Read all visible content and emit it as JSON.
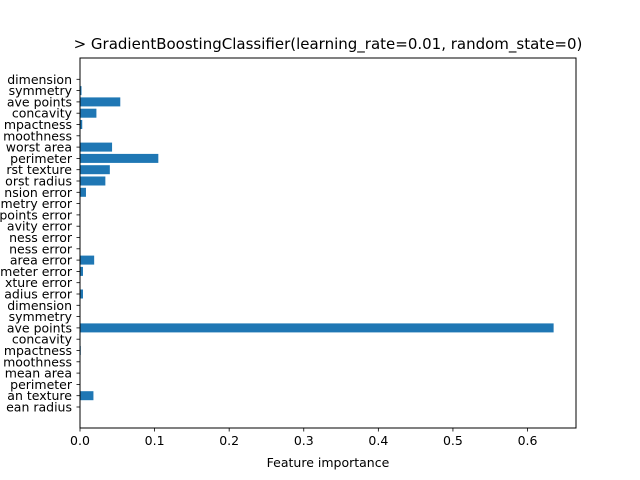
{
  "chart_data": {
    "type": "bar",
    "orientation": "horizontal",
    "title": "> GradientBoostingClassifier(learning_rate=0.01, random_state=0)",
    "xlabel": "Feature importance",
    "ylabel": "",
    "xlim": [
      0,
      0.665
    ],
    "xticks": [
      "0.0",
      "0.1",
      "0.2",
      "0.3",
      "0.4",
      "0.5",
      "0.6"
    ],
    "grid": false,
    "bar_color": "#1f77b4",
    "categories": [
      "mean radius",
      "mean texture",
      "mean perimeter",
      "mean area",
      "mean smoothness",
      "mean compactness",
      "mean concavity",
      "mean concave points",
      "mean symmetry",
      "mean fractal dimension",
      "radius error",
      "texture error",
      "perimeter error",
      "area error",
      "smoothness error",
      "compactness error",
      "concavity error",
      "concave points error",
      "symmetry error",
      "fractal dimension error",
      "worst radius",
      "worst texture",
      "worst perimeter",
      "worst area",
      "worst smoothness",
      "worst compactness",
      "worst concavity",
      "worst concave points",
      "worst symmetry",
      "worst fractal dimension"
    ],
    "tick_labels_visible": [
      "ean radius",
      "an texture",
      "perimeter",
      "mean area",
      "moothness",
      "mpactness",
      "concavity",
      "ave points",
      "symmetry",
      "dimension",
      "adius error",
      "xture error",
      "meter error",
      "area error",
      "ness error",
      "ness error",
      "avity error",
      "points error",
      "metry error",
      "nsion error",
      "orst radius",
      "rst texture",
      "perimeter",
      "worst area",
      "moothness",
      "mpactness",
      "concavity",
      "ave points",
      "symmetry",
      "dimension"
    ],
    "values": [
      0.0,
      0.018,
      0.0,
      0.0,
      0.0,
      0.001,
      0.0,
      0.635,
      0.0,
      0.0,
      0.004,
      0.0,
      0.004,
      0.019,
      0.0,
      0.0,
      0.0,
      0.0,
      0.0,
      0.008,
      0.034,
      0.04,
      0.105,
      0.043,
      0.0,
      0.003,
      0.022,
      0.054,
      0.002,
      0.0
    ]
  }
}
